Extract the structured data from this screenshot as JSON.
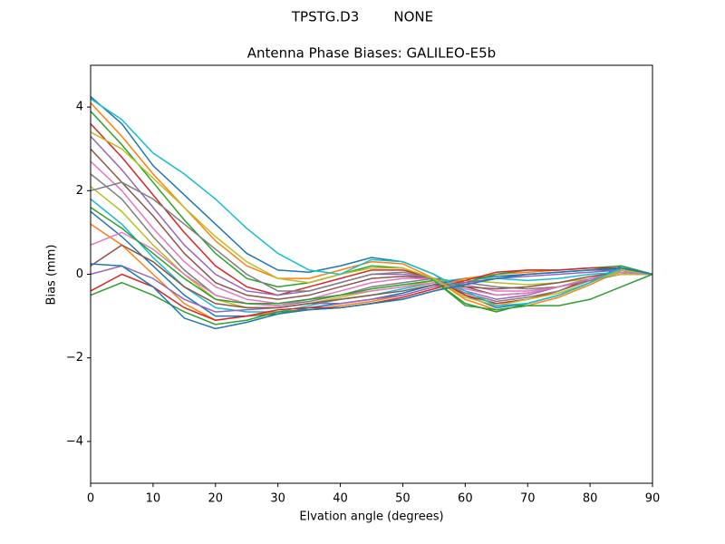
{
  "chart_data": {
    "type": "line",
    "suptitle": "TPSTG.D3        NONE",
    "title": "Antenna Phase Biases: GALILEO-E5b",
    "xlabel": "Elvation angle (degrees)",
    "ylabel": "Bias (mm)",
    "x": [
      0,
      5,
      10,
      15,
      20,
      25,
      30,
      35,
      40,
      45,
      50,
      55,
      60,
      65,
      70,
      75,
      80,
      85,
      90
    ],
    "xlim": [
      0,
      90
    ],
    "xticks": [
      0,
      10,
      20,
      30,
      40,
      50,
      60,
      70,
      80,
      90
    ],
    "ylim": [
      -5,
      5
    ],
    "yticks": [
      {
        "value": -4,
        "label": "−4"
      },
      {
        "value": -2,
        "label": "−2"
      },
      0,
      2,
      4
    ],
    "series": [
      {
        "color": "#1f77b4",
        "values": [
          4.25,
          3.6,
          2.6,
          1.9,
          1.2,
          0.5,
          0.1,
          0.05,
          0.2,
          0.4,
          0.3,
          0.0,
          -0.5,
          -0.8,
          -0.7,
          -0.5,
          -0.2,
          0.2,
          0
        ]
      },
      {
        "color": "#ff7f0e",
        "values": [
          4.1,
          3.3,
          2.4,
          1.6,
          0.8,
          0.2,
          -0.1,
          -0.1,
          0.1,
          0.3,
          0.25,
          -0.1,
          -0.6,
          -0.85,
          -0.75,
          -0.55,
          -0.25,
          0.1,
          0
        ]
      },
      {
        "color": "#2ca02c",
        "values": [
          3.9,
          3.1,
          2.2,
          1.3,
          0.5,
          -0.1,
          -0.3,
          -0.2,
          0.0,
          0.2,
          0.15,
          -0.15,
          -0.7,
          -0.9,
          -0.7,
          -0.5,
          -0.2,
          0.15,
          0
        ]
      },
      {
        "color": "#d62728",
        "values": [
          3.6,
          2.8,
          1.9,
          1.0,
          0.2,
          -0.3,
          -0.5,
          -0.3,
          -0.1,
          0.1,
          0.1,
          -0.1,
          -0.5,
          -0.7,
          -0.6,
          -0.4,
          -0.1,
          0.1,
          0
        ]
      },
      {
        "color": "#9467bd",
        "values": [
          3.3,
          2.5,
          1.6,
          0.7,
          0.0,
          -0.4,
          -0.5,
          -0.4,
          -0.2,
          0.0,
          0.0,
          -0.1,
          -0.4,
          -0.6,
          -0.5,
          -0.3,
          -0.1,
          0.05,
          0
        ]
      },
      {
        "color": "#8c564b",
        "values": [
          3.0,
          2.2,
          1.4,
          0.5,
          -0.2,
          -0.5,
          -0.6,
          -0.5,
          -0.3,
          -0.1,
          -0.05,
          -0.1,
          -0.3,
          -0.5,
          -0.45,
          -0.3,
          -0.1,
          0.05,
          0
        ]
      },
      {
        "color": "#e377c2",
        "values": [
          2.7,
          2.0,
          1.1,
          0.3,
          -0.3,
          -0.6,
          -0.7,
          -0.6,
          -0.4,
          -0.2,
          -0.1,
          -0.1,
          -0.25,
          -0.4,
          -0.4,
          -0.3,
          -0.1,
          0.0,
          0
        ]
      },
      {
        "color": "#7f7f7f",
        "values": [
          2.4,
          1.8,
          0.9,
          0.1,
          -0.5,
          -0.7,
          -0.75,
          -0.65,
          -0.5,
          -0.3,
          -0.2,
          -0.1,
          -0.2,
          -0.3,
          -0.35,
          -0.3,
          -0.15,
          0.0,
          0
        ]
      },
      {
        "color": "#bcbd22",
        "values": [
          2.1,
          1.5,
          0.7,
          0.0,
          -0.6,
          -0.8,
          -0.8,
          -0.7,
          -0.55,
          -0.4,
          -0.3,
          -0.15,
          -0.15,
          -0.2,
          -0.25,
          -0.2,
          -0.1,
          0.0,
          0
        ]
      },
      {
        "color": "#17becf",
        "values": [
          1.8,
          1.2,
          0.4,
          -0.3,
          -0.8,
          -0.9,
          -0.9,
          -0.75,
          -0.6,
          -0.5,
          -0.35,
          -0.2,
          -0.1,
          -0.1,
          -0.15,
          -0.1,
          0.0,
          0.05,
          0
        ]
      },
      {
        "color": "#1f77b4",
        "values": [
          1.5,
          0.9,
          0.2,
          -0.5,
          -1.0,
          -1.0,
          -0.95,
          -0.8,
          -0.7,
          -0.6,
          -0.45,
          -0.25,
          -0.1,
          -0.05,
          0.0,
          0.05,
          0.1,
          0.1,
          0
        ]
      },
      {
        "color": "#ff7f0e",
        "values": [
          1.2,
          0.7,
          0.0,
          -0.7,
          -1.1,
          -1.0,
          -0.9,
          -0.85,
          -0.75,
          -0.65,
          -0.5,
          -0.3,
          -0.1,
          0.0,
          0.05,
          0.1,
          0.15,
          0.15,
          0
        ]
      },
      {
        "color": "#2ca02c",
        "values": [
          -0.5,
          -0.2,
          -0.5,
          -0.9,
          -1.2,
          -1.1,
          -0.9,
          -0.85,
          -0.8,
          -0.7,
          -0.6,
          -0.4,
          -0.2,
          0.0,
          0.1,
          0.1,
          0.15,
          0.2,
          0
        ]
      },
      {
        "color": "#d62728",
        "values": [
          -0.4,
          0.0,
          -0.3,
          -0.8,
          -1.1,
          -1.0,
          -0.85,
          -0.8,
          -0.8,
          -0.7,
          -0.55,
          -0.35,
          -0.15,
          0.05,
          0.1,
          0.1,
          0.15,
          0.15,
          0
        ]
      },
      {
        "color": "#9467bd",
        "values": [
          0.0,
          0.2,
          -0.1,
          -0.6,
          -0.9,
          -0.85,
          -0.8,
          -0.7,
          -0.7,
          -0.6,
          -0.5,
          -0.3,
          -0.2,
          -0.1,
          -0.05,
          0.0,
          0.05,
          0.1,
          0
        ]
      },
      {
        "color": "#8c564b",
        "values": [
          0.2,
          0.7,
          0.3,
          -0.3,
          -0.7,
          -0.8,
          -0.8,
          -0.7,
          -0.6,
          -0.5,
          -0.4,
          -0.25,
          -0.3,
          -0.35,
          -0.3,
          -0.2,
          -0.05,
          0.05,
          0
        ]
      },
      {
        "color": "#e377c2",
        "values": [
          0.7,
          1.0,
          0.6,
          0.0,
          -0.5,
          -0.7,
          -0.75,
          -0.6,
          -0.5,
          -0.4,
          -0.3,
          -0.2,
          -0.35,
          -0.5,
          -0.45,
          -0.3,
          -0.1,
          0.05,
          0
        ]
      },
      {
        "color": "#7f7f7f",
        "values": [
          2.0,
          2.2,
          1.8,
          1.2,
          0.6,
          0.0,
          -0.4,
          -0.4,
          -0.2,
          0.0,
          0.05,
          -0.1,
          -0.45,
          -0.65,
          -0.55,
          -0.4,
          -0.15,
          0.1,
          0
        ]
      },
      {
        "color": "#bcbd22",
        "values": [
          3.4,
          3.0,
          2.3,
          1.6,
          0.9,
          0.3,
          -0.1,
          -0.2,
          0.0,
          0.15,
          0.15,
          -0.1,
          -0.55,
          -0.75,
          -0.6,
          -0.45,
          -0.2,
          0.1,
          0
        ]
      },
      {
        "color": "#17becf",
        "values": [
          4.2,
          3.7,
          2.9,
          2.4,
          1.8,
          1.1,
          0.5,
          0.1,
          0.0,
          0.35,
          0.3,
          0.0,
          -0.4,
          -0.75,
          -0.7,
          -0.5,
          -0.2,
          0.15,
          0
        ]
      },
      {
        "color": "#1f77b4",
        "values": [
          0.25,
          0.2,
          -0.3,
          -1.05,
          -1.3,
          -1.15,
          -0.95,
          -0.85,
          -0.8,
          -0.7,
          -0.6,
          -0.4,
          -0.25,
          -0.1,
          0.0,
          0.05,
          0.1,
          0.15,
          0
        ]
      },
      {
        "color": "#2ca02c",
        "values": [
          1.6,
          1.1,
          0.5,
          -0.1,
          -0.6,
          -0.7,
          -0.7,
          -0.6,
          -0.5,
          -0.35,
          -0.25,
          -0.15,
          -0.75,
          -0.85,
          -0.75,
          -0.75,
          -0.6,
          -0.3,
          0
        ]
      }
    ]
  }
}
